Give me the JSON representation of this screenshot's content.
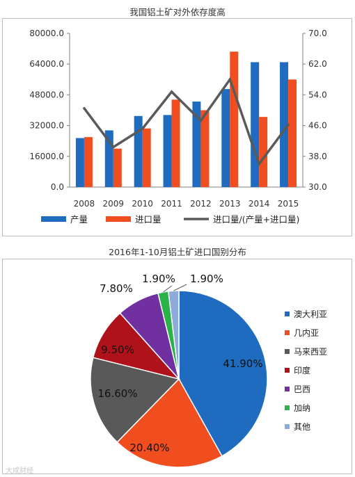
{
  "chart_data": [
    {
      "type": "bar",
      "title": "我国铝土矿对外依存度高",
      "categories": [
        "2008",
        "2009",
        "2010",
        "2011",
        "2012",
        "2013",
        "2014",
        "2015"
      ],
      "series": [
        {
          "name": "产量",
          "type": "bar",
          "axis": "left",
          "color": "#1f6bbf",
          "values": [
            25500,
            29500,
            37000,
            37500,
            44500,
            51000,
            65000,
            65000
          ]
        },
        {
          "name": "进口量",
          "type": "bar",
          "axis": "left",
          "color": "#f04e1e",
          "values": [
            26000,
            20000,
            30500,
            45500,
            40000,
            70500,
            36500,
            56000
          ]
        },
        {
          "name": "进口量/(产量+进口量)",
          "type": "line",
          "axis": "right",
          "color": "#5a5a5a",
          "values": [
            50.5,
            40.4,
            45.2,
            54.8,
            47.3,
            58.0,
            36.0,
            46.2
          ]
        }
      ],
      "ylim": [
        0,
        80000
      ],
      "yticks": [
        "0.0",
        "16000.0",
        "32000.0",
        "48000.0",
        "64000.0",
        "80000.0"
      ],
      "y2lim": [
        30,
        70
      ],
      "y2ticks": [
        "30.0",
        "38.0",
        "46.0",
        "54.0",
        "62.0",
        "70.0"
      ],
      "legend": "bottom",
      "grid": false
    },
    {
      "type": "pie",
      "title": "2016年1-10月铝土矿进口国别分布",
      "labels": [
        "澳大利亚",
        "几内亚",
        "马来西亚",
        "印度",
        "巴西",
        "加纳",
        "其他"
      ],
      "values": [
        41.9,
        20.4,
        16.6,
        9.5,
        7.8,
        1.9,
        1.9
      ],
      "data_labels": [
        "41.90%",
        "20.40%",
        "16.60%",
        "9.50%",
        "7.80%",
        "1.90%",
        "1.90%"
      ],
      "colors": [
        "#1f6bbf",
        "#f04e1e",
        "#595959",
        "#b0121b",
        "#7030a0",
        "#2bb34a",
        "#8eaadb"
      ],
      "legend": "right"
    }
  ],
  "watermark": "大成财经"
}
